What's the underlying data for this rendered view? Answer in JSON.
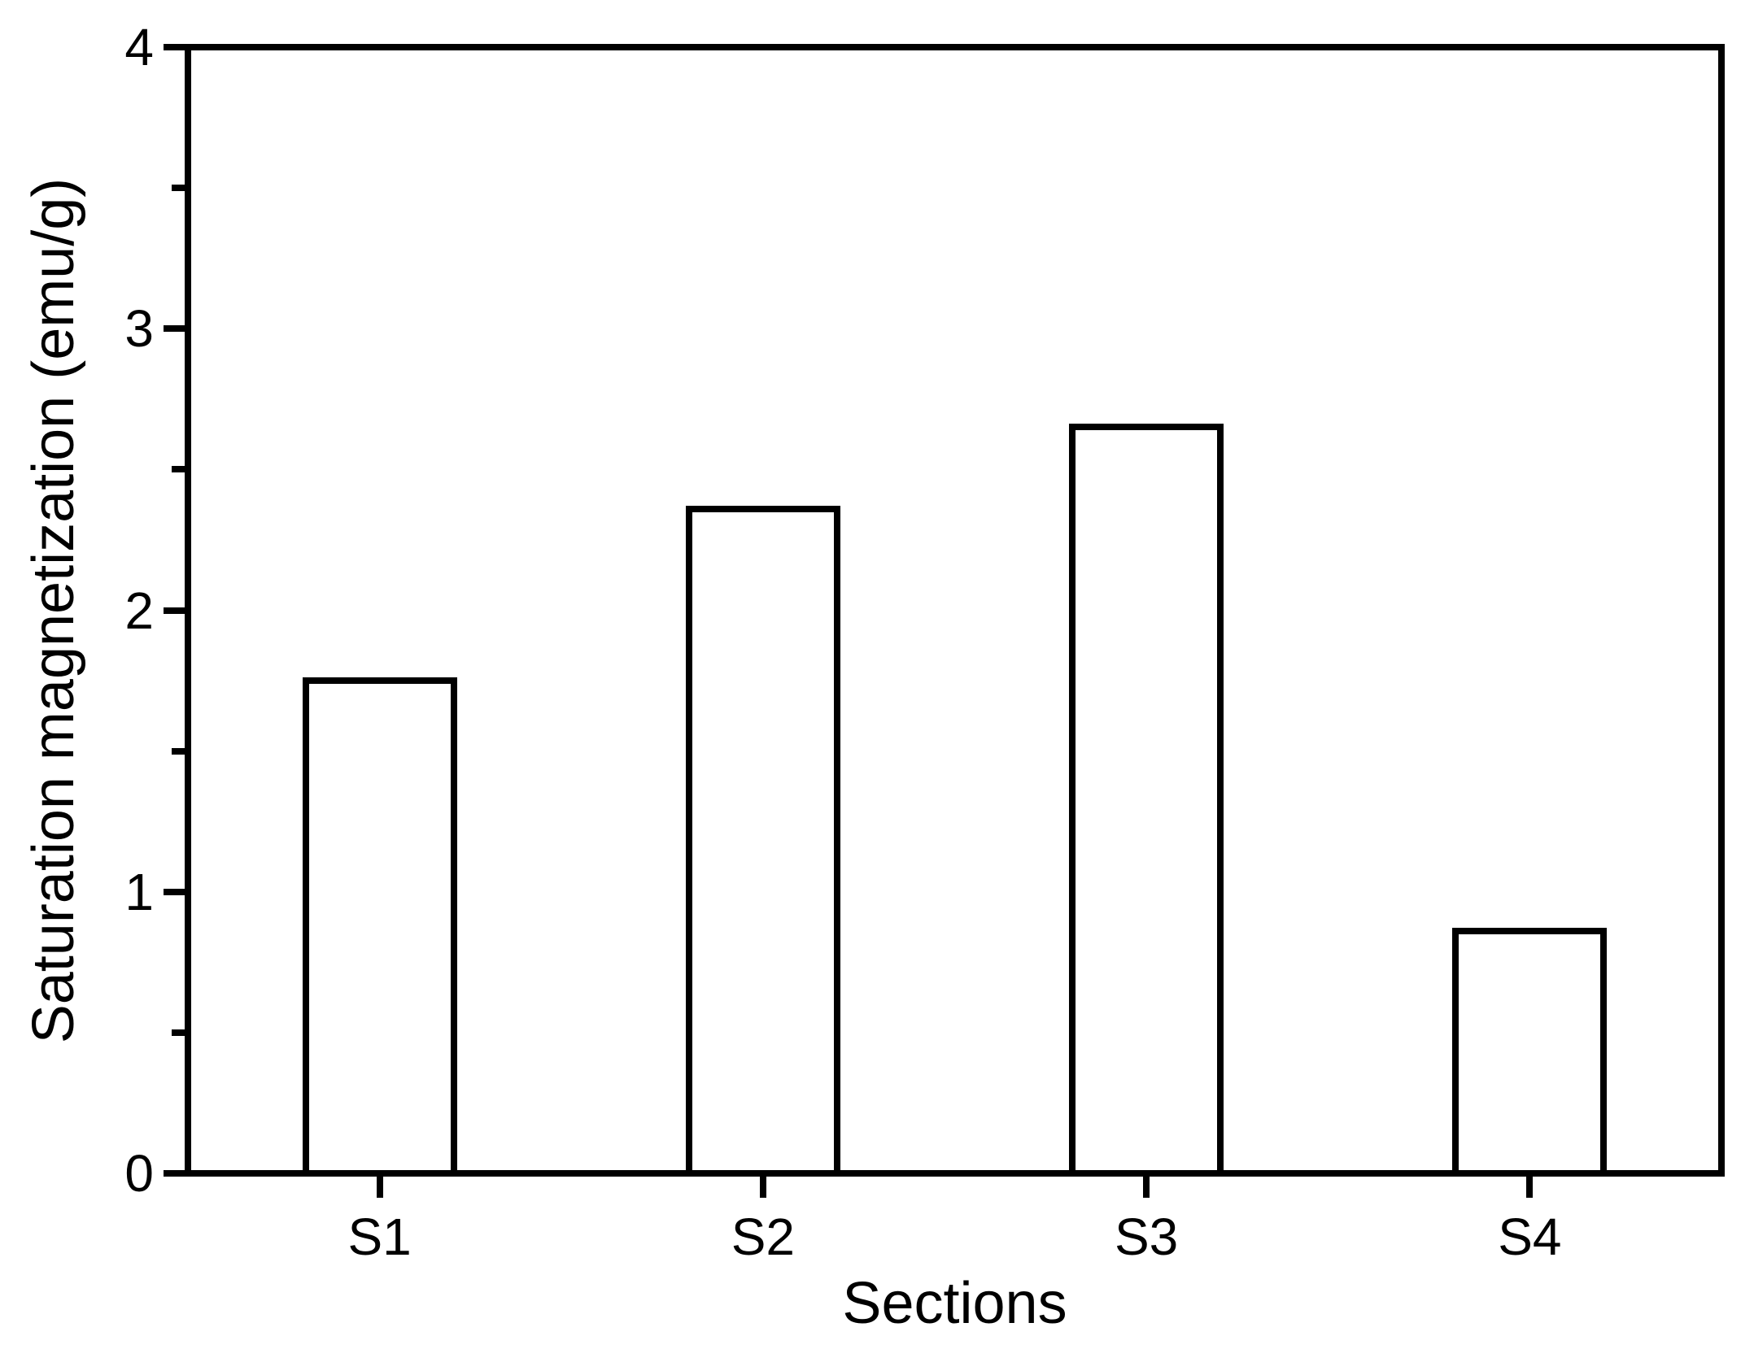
{
  "chart_data": {
    "type": "bar",
    "title": "",
    "categories": [
      "S1",
      "S2",
      "S3",
      "S4"
    ],
    "values": [
      1.75,
      2.36,
      2.65,
      0.86
    ],
    "xlabel": "Sections",
    "ylabel": "Saturation magnetization (emu/g)",
    "ylim": [
      0,
      4
    ],
    "y_major_ticks": [
      0,
      1,
      2,
      3,
      4
    ],
    "y_major_tick_labels": [
      "0",
      "1",
      "2",
      "3",
      "4"
    ],
    "y_minor_ticks": [
      0.5,
      1.5,
      2.5,
      3.5
    ],
    "grid": false,
    "legend": null,
    "colors": {
      "background": "#ffffff",
      "axis": "#000000",
      "bar_fill": "#ffffff",
      "bar_border": "#000000",
      "text": "#000000"
    }
  }
}
